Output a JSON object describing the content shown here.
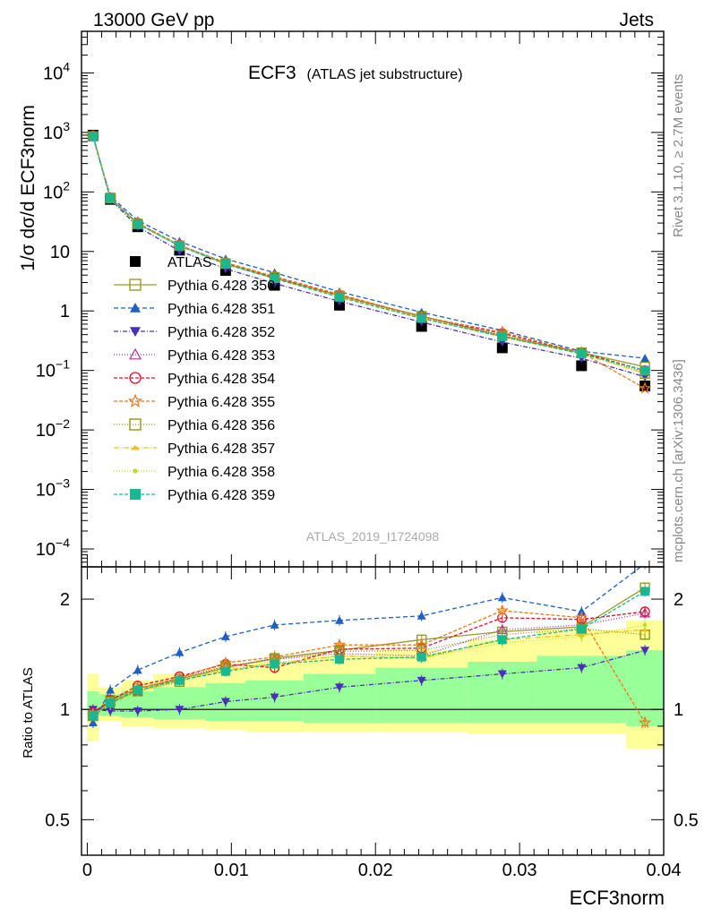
{
  "header": {
    "energy": "13000 GeV pp",
    "category": "Jets",
    "plot_title": "ECF3",
    "plot_subtitle": "(ATLAS jet substructure)",
    "rivet_note": "Rivet 3.1.10, ≥ 2.7M events",
    "site_note": "mcplots.cern.ch [arXiv:1306.3436]",
    "analysis_id": "ATLAS_2019_I1724098"
  },
  "chart_data": [
    {
      "type": "line",
      "panel": "main",
      "ylabel": "1/σ dσ/d ECF3norm",
      "yscale": "log",
      "ylim": [
        5e-05,
        50000
      ],
      "xlim": [
        -0.0004,
        0.04
      ],
      "ytick_labels": [
        {
          "value": 0.0001,
          "base": "10",
          "exp": "−4"
        },
        {
          "value": 0.001,
          "base": "10",
          "exp": "−3"
        },
        {
          "value": 0.01,
          "base": "10",
          "exp": "−2"
        },
        {
          "value": 0.1,
          "base": "10",
          "exp": "−1"
        },
        {
          "value": 1,
          "base": "1",
          "exp": ""
        },
        {
          "value": 10,
          "base": "10",
          "exp": ""
        },
        {
          "value": 100,
          "base": "10",
          "exp": "2"
        },
        {
          "value": 1000,
          "base": "10",
          "exp": "3"
        },
        {
          "value": 10000,
          "base": "10",
          "exp": "4"
        }
      ],
      "x": [
        0.0004,
        0.0016,
        0.0035,
        0.0064,
        0.0096,
        0.013,
        0.0175,
        0.0232,
        0.0288,
        0.0343,
        0.0387
      ],
      "series": [
        {
          "name": "ATLAS",
          "color": "#000000",
          "dash": "",
          "marker": "square",
          "values": [
            900,
            75,
            26,
            10.5,
            4.8,
            2.7,
            1.25,
            0.55,
            0.24,
            0.12,
            0.055
          ]
        },
        {
          "name": "Pythia 6.428 350",
          "color": "#9a9a2a",
          "dash": "",
          "marker": "open-square",
          "values": [
            860,
            80,
            29,
            12.5,
            6.2,
            3.6,
            1.8,
            0.82,
            0.38,
            0.2,
            0.115
          ]
        },
        {
          "name": "Pythia 6.428 351",
          "color": "#1f5fc4",
          "dash": "5,3",
          "marker": "triangle-up",
          "values": [
            820,
            85,
            33,
            14.8,
            7.5,
            4.4,
            2.1,
            0.95,
            0.47,
            0.21,
            0.16
          ]
        },
        {
          "name": "Pythia 6.428 352",
          "color": "#4a2fb8",
          "dash": "5,2,1,2",
          "marker": "triangle-down",
          "values": [
            900,
            75,
            26,
            10.2,
            5.1,
            2.9,
            1.45,
            0.65,
            0.3,
            0.16,
            0.078
          ]
        },
        {
          "name": "Pythia 6.428 353",
          "color": "#b03098",
          "dash": "1,2",
          "marker": "open-triangle",
          "values": [
            880,
            78,
            29,
            12.9,
            6.4,
            3.7,
            1.8,
            0.8,
            0.39,
            0.2,
            0.095
          ]
        },
        {
          "name": "Pythia 6.428 354",
          "color": "#e0112a",
          "dash": "4,2",
          "marker": "open-circle",
          "values": [
            880,
            79,
            30,
            12.8,
            6.4,
            3.6,
            1.85,
            0.8,
            0.42,
            0.2,
            0.1
          ]
        },
        {
          "name": "Pythia 6.428 355",
          "color": "#f07818",
          "dash": "4,2",
          "marker": "open-star",
          "values": [
            860,
            78,
            30,
            12.7,
            6.5,
            3.8,
            1.9,
            0.8,
            0.44,
            0.2,
            0.05
          ]
        },
        {
          "name": "Pythia 6.428 356",
          "color": "#8a9a18",
          "dash": "1,2",
          "marker": "open-square",
          "values": [
            860,
            78,
            29,
            12.4,
            6.3,
            3.7,
            1.8,
            0.79,
            0.38,
            0.2,
            0.088
          ]
        },
        {
          "name": "Pythia 6.428 357",
          "color": "#e8c020",
          "dash": "6,2,1,2",
          "marker": "tri-mark",
          "values": [
            870,
            77,
            29,
            12.6,
            6.1,
            3.5,
            1.75,
            0.76,
            0.37,
            0.19,
            0.09
          ]
        },
        {
          "name": "Pythia 6.428 358",
          "color": "#c8d828",
          "dash": "1,2",
          "marker": "dot",
          "values": [
            870,
            78,
            29,
            12.6,
            6.2,
            3.5,
            1.75,
            0.75,
            0.36,
            0.19,
            0.09
          ]
        },
        {
          "name": "Pythia 6.428 359",
          "color": "#1ab890",
          "dash": "4,2",
          "marker": "square",
          "values": [
            860,
            78,
            29,
            12.4,
            6.1,
            3.5,
            1.7,
            0.75,
            0.37,
            0.19,
            0.1
          ]
        }
      ]
    },
    {
      "type": "line",
      "panel": "ratio",
      "ylabel": "Ratio to ATLAS",
      "yscale": "log",
      "ylim": [
        0.4,
        2.45
      ],
      "ytick_labels": [
        "0.5",
        "1",
        "2"
      ],
      "ytick_values": [
        0.5,
        1,
        2
      ],
      "xlabel": "ECF3norm",
      "xtick_labels": [
        "0",
        "0.01",
        "0.02",
        "0.03",
        "0.04"
      ],
      "xtick_values": [
        0,
        0.01,
        0.02,
        0.03,
        0.04
      ],
      "bin_edges": [
        0,
        0.0008,
        0.0024,
        0.0046,
        0.0082,
        0.011,
        0.015,
        0.02,
        0.0264,
        0.0312,
        0.0374,
        0.04
      ],
      "band_outer": {
        "color": "#ffff99",
        "lo": [
          0.82,
          0.93,
          0.9,
          0.89,
          0.88,
          0.87,
          0.87,
          0.87,
          0.86,
          0.86,
          0.78
        ],
        "hi": [
          1.25,
          1.15,
          1.2,
          1.25,
          1.3,
          1.35,
          1.4,
          1.45,
          1.55,
          1.65,
          1.75
        ]
      },
      "band_inner": {
        "color": "#99ff99",
        "lo": [
          0.93,
          0.96,
          0.95,
          0.94,
          0.93,
          0.93,
          0.92,
          0.92,
          0.92,
          0.92,
          0.9
        ],
        "hi": [
          1.12,
          1.1,
          1.12,
          1.15,
          1.18,
          1.2,
          1.25,
          1.3,
          1.35,
          1.4,
          1.45
        ]
      },
      "x": [
        0.0004,
        0.0016,
        0.0035,
        0.0064,
        0.0096,
        0.013,
        0.0175,
        0.0232,
        0.0288,
        0.0343,
        0.0387
      ],
      "series": [
        {
          "name": "Pythia 6.428 350",
          "color": "#9a9a2a",
          "dash": "",
          "marker": "open-square",
          "values": [
            0.96,
            1.06,
            1.14,
            1.21,
            1.3,
            1.38,
            1.45,
            1.55,
            1.63,
            1.68,
            2.15
          ]
        },
        {
          "name": "Pythia 6.428 351",
          "color": "#1f5fc4",
          "dash": "5,3",
          "marker": "triangle-up",
          "values": [
            0.92,
            1.13,
            1.28,
            1.43,
            1.58,
            1.7,
            1.75,
            1.8,
            2.02,
            1.85,
            2.5
          ]
        },
        {
          "name": "Pythia 6.428 352",
          "color": "#4a2fb8",
          "dash": "5,2,1,2",
          "marker": "triangle-down",
          "values": [
            1.0,
            0.99,
            0.99,
            1.0,
            1.05,
            1.08,
            1.15,
            1.2,
            1.25,
            1.3,
            1.45
          ]
        },
        {
          "name": "Pythia 6.428 353",
          "color": "#b03098",
          "dash": "1,2",
          "marker": "open-triangle",
          "values": [
            0.98,
            1.05,
            1.12,
            1.22,
            1.31,
            1.37,
            1.42,
            1.4,
            1.65,
            1.7,
            1.83
          ]
        },
        {
          "name": "Pythia 6.428 354",
          "color": "#e0112a",
          "dash": "4,2",
          "marker": "open-circle",
          "values": [
            0.98,
            1.06,
            1.16,
            1.23,
            1.33,
            1.3,
            1.46,
            1.47,
            1.78,
            1.76,
            1.85
          ]
        },
        {
          "name": "Pythia 6.428 355",
          "color": "#f07818",
          "dash": "4,2",
          "marker": "open-star",
          "values": [
            0.96,
            1.04,
            1.14,
            1.22,
            1.34,
            1.39,
            1.5,
            1.5,
            1.86,
            1.78,
            0.92
          ]
        },
        {
          "name": "Pythia 6.428 356",
          "color": "#8a9a18",
          "dash": "1,2",
          "marker": "open-square",
          "values": [
            0.96,
            1.05,
            1.12,
            1.19,
            1.31,
            1.37,
            1.44,
            1.45,
            1.6,
            1.66,
            1.6
          ]
        },
        {
          "name": "Pythia 6.428 357",
          "color": "#e8c020",
          "dash": "6,2,1,2",
          "marker": "tri-mark",
          "values": [
            0.97,
            1.03,
            1.12,
            1.2,
            1.28,
            1.33,
            1.4,
            1.38,
            1.55,
            1.6,
            1.65
          ]
        },
        {
          "name": "Pythia 6.428 358",
          "color": "#c8d828",
          "dash": "1,2",
          "marker": "dot",
          "values": [
            0.97,
            1.04,
            1.12,
            1.2,
            1.29,
            1.34,
            1.4,
            1.38,
            1.52,
            1.58,
            1.7
          ]
        },
        {
          "name": "Pythia 6.428 359",
          "color": "#1ab890",
          "dash": "4,2",
          "marker": "square",
          "values": [
            0.96,
            1.04,
            1.13,
            1.2,
            1.27,
            1.33,
            1.37,
            1.39,
            1.55,
            1.66,
            2.1
          ]
        }
      ]
    }
  ]
}
